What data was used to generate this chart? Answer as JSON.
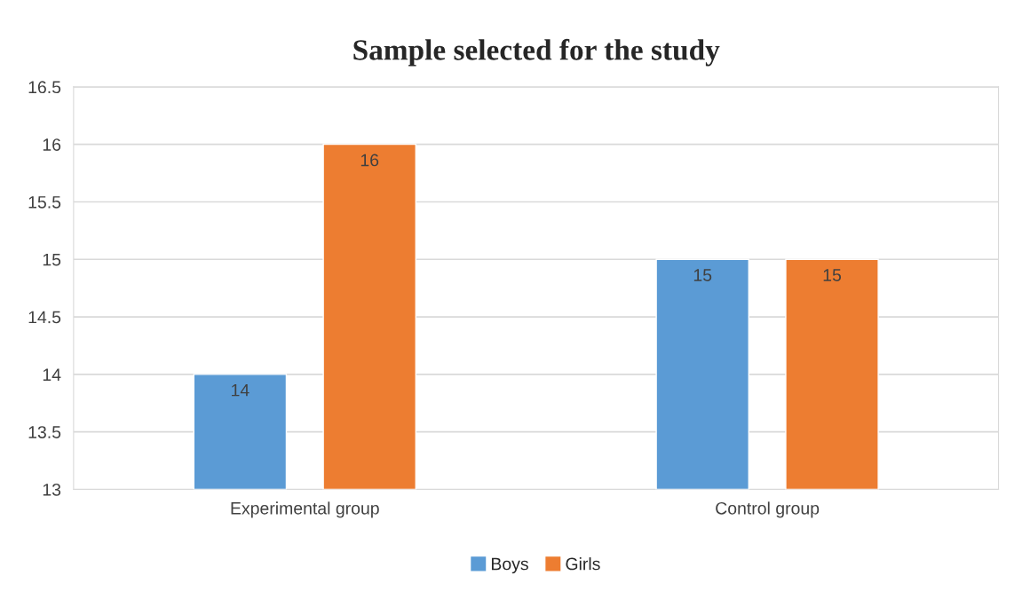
{
  "chart_data": {
    "type": "bar",
    "title": "Sample selected for the study",
    "categories": [
      "Experimental group",
      "Control group"
    ],
    "series": [
      {
        "name": "Boys",
        "color": "#5b9bd5",
        "values": [
          14,
          15
        ]
      },
      {
        "name": "Girls",
        "color": "#ed7d31",
        "values": [
          16,
          15
        ]
      }
    ],
    "ylim": [
      13,
      16.5
    ],
    "yticks": [
      13,
      13.5,
      14,
      14.5,
      15,
      15.5,
      16,
      16.5
    ],
    "grid": "y",
    "legend": "bottom",
    "data_labels": true
  }
}
